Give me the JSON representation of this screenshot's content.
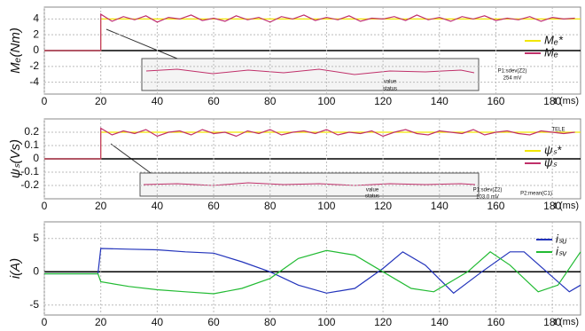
{
  "chart_data": [
    {
      "type": "line",
      "y_label": "Mₑ(Nm)",
      "x_label": "t (ms)",
      "xlim": [
        0,
        190
      ],
      "xticks": [
        0,
        20,
        40,
        60,
        80,
        100,
        120,
        140,
        160,
        180
      ],
      "ylim": [
        -5.5,
        5.5
      ],
      "yticks": [
        4,
        2,
        0,
        -2,
        -4
      ],
      "grid": true,
      "series": [
        {
          "name": "Mₑ*",
          "color": "#f2e600",
          "x": [
            0,
            20,
            20,
            190
          ],
          "values": [
            0,
            0,
            4,
            4
          ]
        },
        {
          "name": "Mₑ",
          "color": "#c0306a",
          "x": [
            0,
            20,
            20,
            24,
            28,
            32,
            36,
            40,
            44,
            48,
            52,
            56,
            60,
            64,
            68,
            72,
            76,
            80,
            84,
            88,
            92,
            96,
            100,
            104,
            108,
            112,
            116,
            120,
            124,
            128,
            132,
            136,
            140,
            144,
            148,
            152,
            156,
            160,
            164,
            168,
            172,
            176,
            180,
            184,
            188
          ],
          "values": [
            0,
            0,
            4.6,
            3.7,
            4.3,
            3.9,
            4.4,
            3.6,
            4.2,
            4.0,
            4.5,
            3.8,
            4.1,
            3.7,
            4.4,
            3.9,
            4.2,
            3.6,
            4.3,
            4.0,
            4.5,
            3.8,
            4.2,
            3.9,
            4.4,
            3.7,
            4.1,
            4.0,
            4.3,
            3.8,
            4.5,
            3.9,
            4.2,
            3.7,
            4.3,
            4.0,
            4.4,
            3.8,
            4.1,
            3.9,
            4.3,
            3.7,
            4.2,
            4.0,
            4.1
          ]
        }
      ],
      "annotations": [
        "P1:sdev(Z2)",
        "254 mV",
        "value",
        "status"
      ]
    },
    {
      "type": "line",
      "y_label": "ψₛ(Vs)",
      "x_label": "t (ms)",
      "xlim": [
        0,
        190
      ],
      "xticks": [
        0,
        20,
        40,
        60,
        80,
        100,
        120,
        140,
        160,
        180
      ],
      "ylim": [
        -0.3,
        0.3
      ],
      "yticks": [
        0.2,
        0.1,
        0,
        -0.1,
        -0.2
      ],
      "grid": true,
      "series": [
        {
          "name": "ψₛ*",
          "color": "#f2e600",
          "x": [
            0,
            20,
            20,
            190
          ],
          "values": [
            0,
            0,
            0.2,
            0.2
          ]
        },
        {
          "name": "ψₛ",
          "color": "#c0306a",
          "x": [
            0,
            20,
            20,
            24,
            28,
            32,
            36,
            40,
            44,
            48,
            52,
            56,
            60,
            64,
            68,
            72,
            76,
            80,
            84,
            88,
            92,
            96,
            100,
            104,
            108,
            112,
            116,
            120,
            124,
            128,
            132,
            136,
            140,
            144,
            148,
            152,
            156,
            160,
            164,
            168,
            172,
            176,
            180,
            184,
            188
          ],
          "values": [
            0,
            0,
            0.23,
            0.18,
            0.21,
            0.19,
            0.22,
            0.17,
            0.2,
            0.21,
            0.18,
            0.22,
            0.19,
            0.2,
            0.17,
            0.21,
            0.19,
            0.22,
            0.18,
            0.2,
            0.21,
            0.19,
            0.22,
            0.18,
            0.2,
            0.19,
            0.21,
            0.17,
            0.2,
            0.22,
            0.19,
            0.18,
            0.21,
            0.2,
            0.19,
            0.22,
            0.18,
            0.2,
            0.21,
            0.19,
            0.18,
            0.21,
            0.2,
            0.19,
            0.2
          ]
        }
      ],
      "annotations": [
        "P1:sdev(Z2)",
        "103.0 mV",
        "P2:mean(C1)",
        "value",
        "status",
        "TELE"
      ]
    },
    {
      "type": "line",
      "y_label": "i(A)",
      "x_label": "t (ms)",
      "xlim": [
        0,
        190
      ],
      "xticks": [
        0,
        20,
        40,
        60,
        80,
        100,
        120,
        140,
        160,
        180
      ],
      "ylim": [
        -6.5,
        7.5
      ],
      "yticks": [
        5,
        0,
        -5
      ],
      "grid": true,
      "series": [
        {
          "name": "iₛᵤ",
          "color": "#2233bb",
          "x": [
            0,
            19,
            20,
            30,
            40,
            50,
            60,
            70,
            80,
            90,
            100,
            110,
            120,
            127,
            135,
            145,
            155,
            165,
            170,
            178,
            186,
            190
          ],
          "values": [
            -0.3,
            -0.3,
            3.5,
            3.4,
            3.3,
            3.0,
            2.8,
            1.5,
            0,
            -2,
            -3.2,
            -2.5,
            0.5,
            3,
            1,
            -3.2,
            0,
            3,
            3,
            0,
            -3,
            -2
          ]
        },
        {
          "name": "iₛᵥ",
          "color": "#22bb33",
          "x": [
            0,
            19,
            20,
            30,
            40,
            50,
            60,
            70,
            80,
            90,
            100,
            110,
            120,
            130,
            138,
            150,
            158,
            165,
            175,
            182,
            190
          ],
          "values": [
            -0.3,
            -0.3,
            -1.5,
            -2.2,
            -2.7,
            -3.0,
            -3.3,
            -2.5,
            -1,
            2,
            3.2,
            2.5,
            0,
            -2.5,
            -3,
            0,
            3,
            1,
            -3,
            -2,
            3
          ]
        }
      ],
      "annotations": []
    }
  ]
}
